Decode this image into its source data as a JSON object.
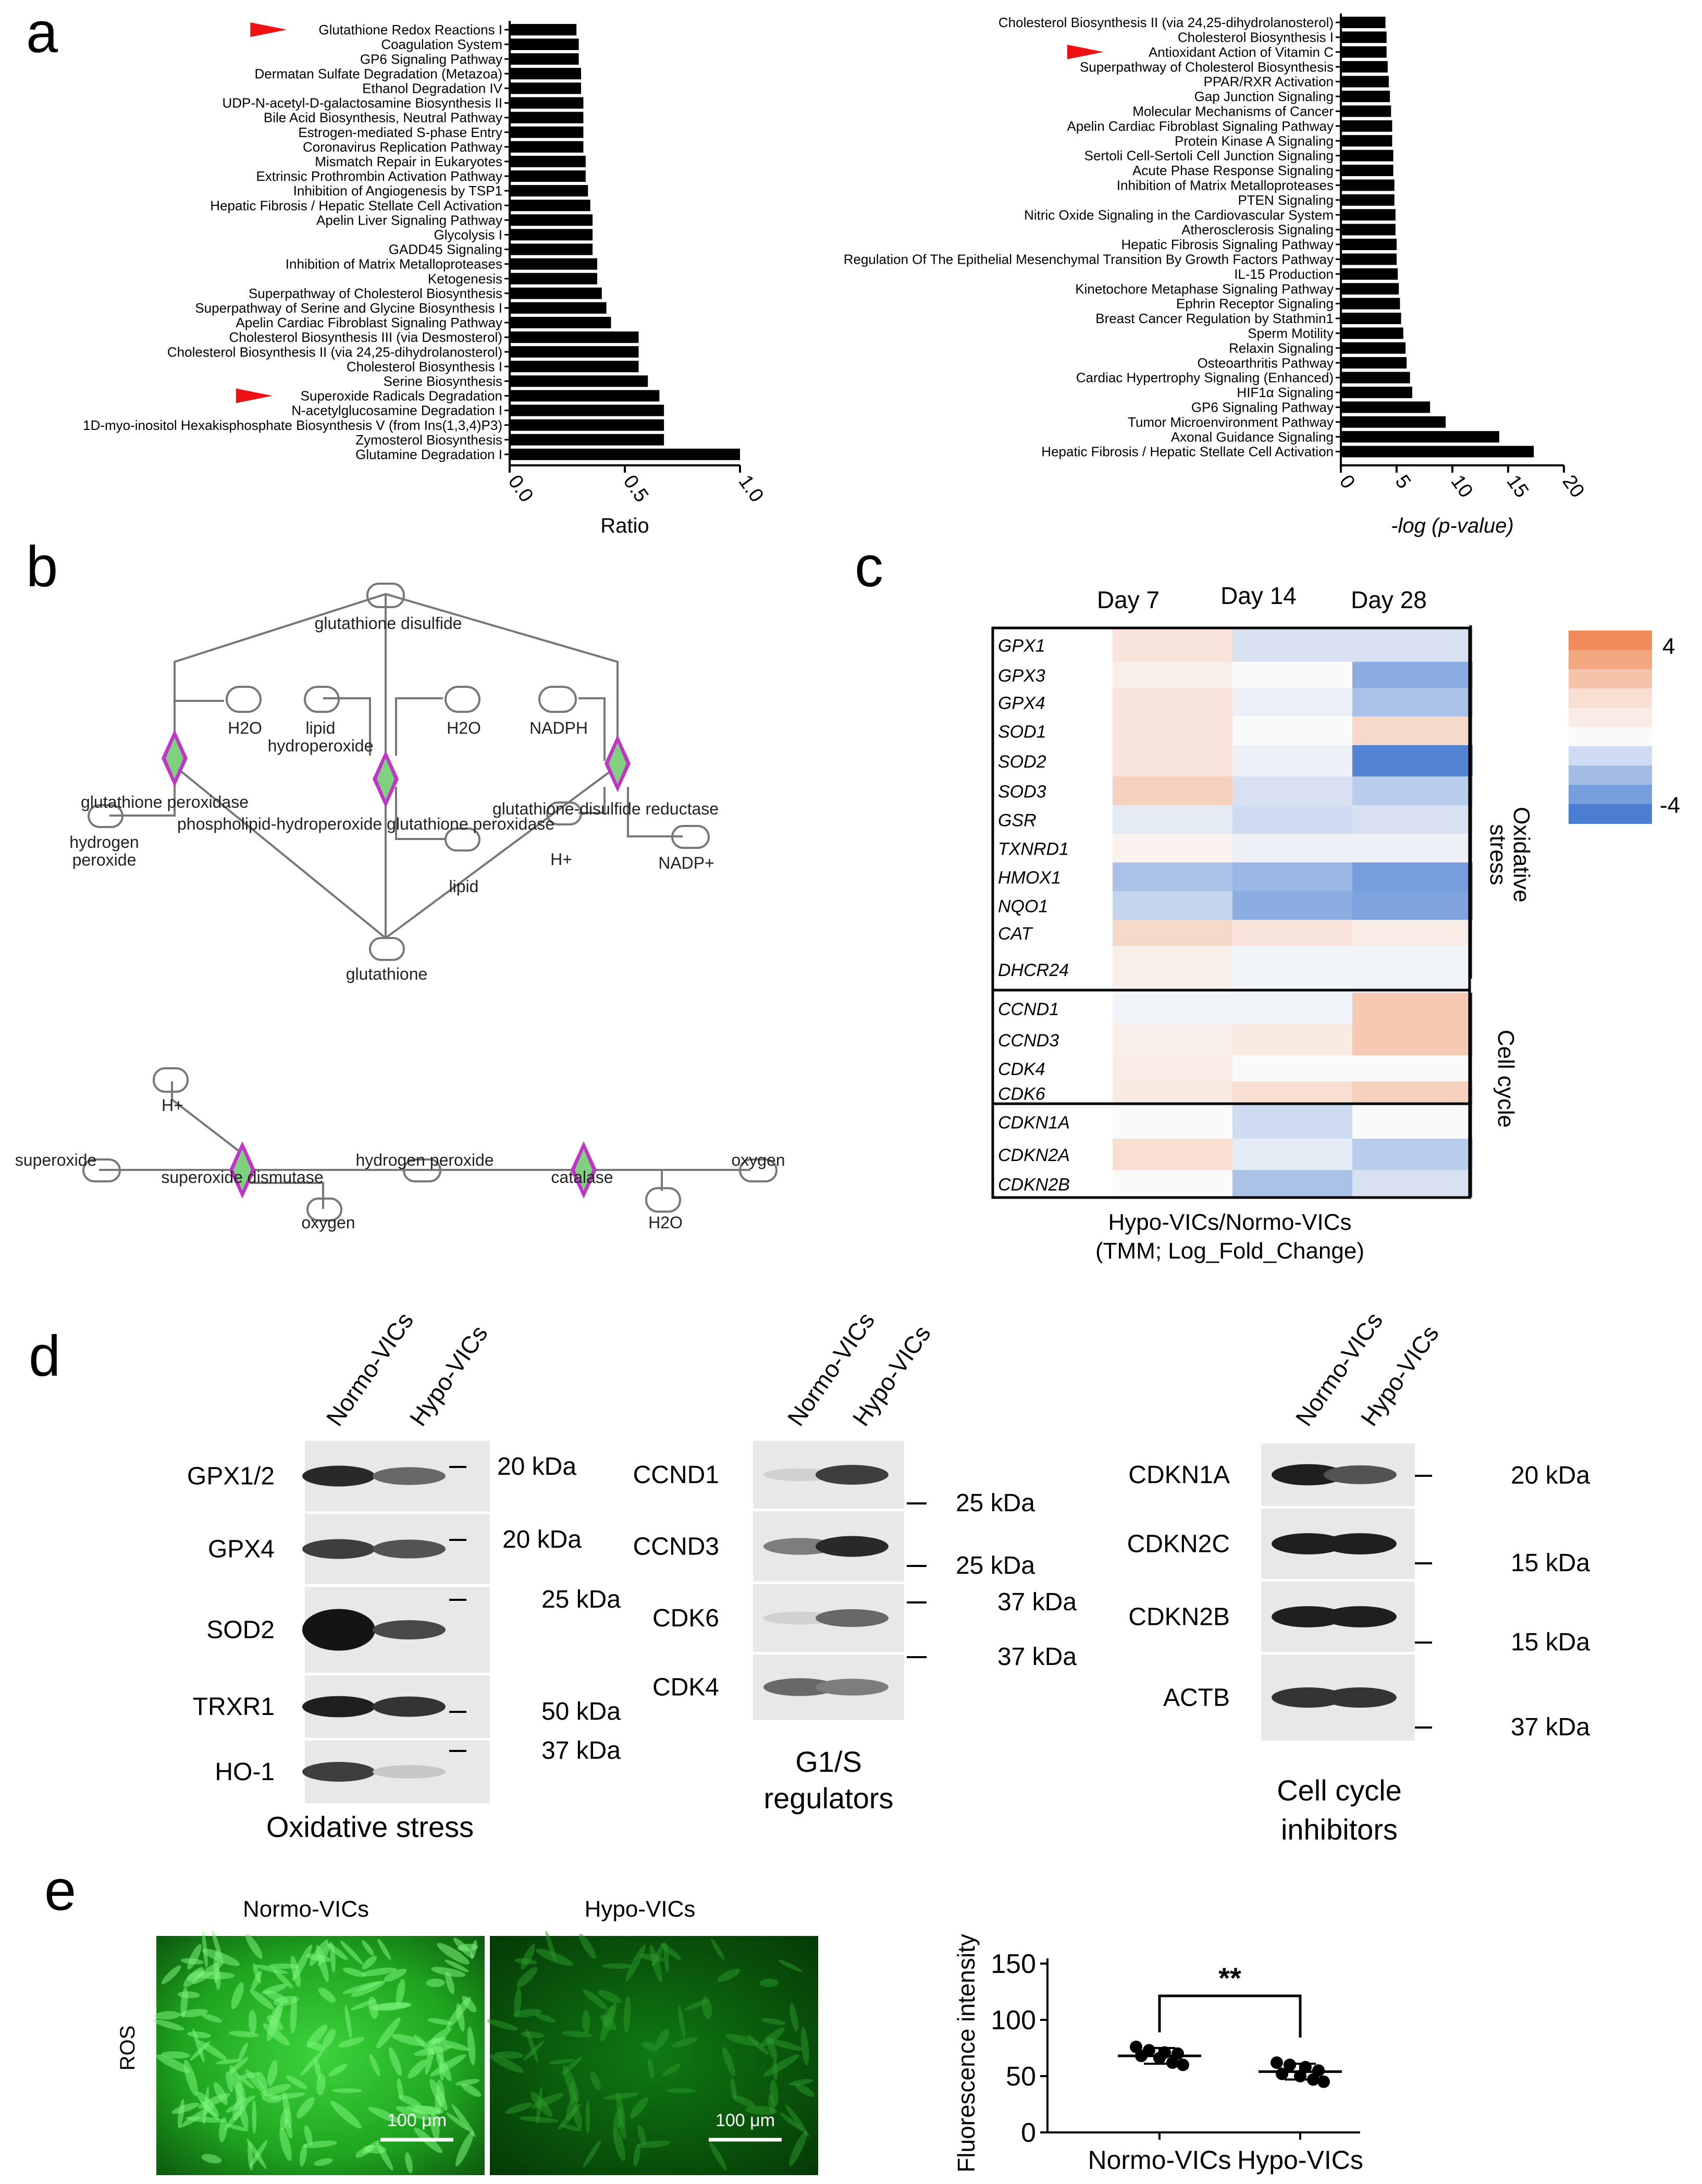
{
  "panels": {
    "a": "a",
    "b": "b",
    "c": "c",
    "d": "d",
    "e": "e"
  },
  "chart_data": [
    {
      "type": "bar",
      "orientation": "horizontal",
      "title": "",
      "xlabel": "Ratio",
      "ylabel": "",
      "xlim": [
        0,
        1.0
      ],
      "xticks": [
        "0.0",
        "0.5",
        "1.0"
      ],
      "highlighted": [
        "Glutathione Redox Reactions I",
        "Superoxide Radicals Degradation"
      ],
      "categories": [
        "Glutathione Redox Reactions I",
        "Coagulation System",
        "GP6 Signaling Pathway",
        "Dermatan Sulfate Degradation (Metazoa)",
        "Ethanol Degradation IV",
        "UDP-N-acetyl-D-galactosamine Biosynthesis II",
        "Bile Acid Biosynthesis, Neutral Pathway",
        "Estrogen-mediated S-phase Entry",
        "Coronavirus Replication Pathway",
        "Mismatch Repair in Eukaryotes",
        "Extrinsic Prothrombin Activation Pathway",
        "Inhibition of Angiogenesis by TSP1",
        "Hepatic Fibrosis / Hepatic Stellate Cell Activation",
        "Apelin Liver Signaling Pathway",
        "Glycolysis I",
        "GADD45 Signaling",
        "Inhibition of Matrix Metalloproteases",
        "Ketogenesis",
        "Superpathway of Cholesterol Biosynthesis",
        "Superpathway of Serine and Glycine Biosynthesis I",
        "Apelin Cardiac Fibroblast Signaling Pathway",
        "Cholesterol Biosynthesis III (via Desmosterol)",
        "Cholesterol Biosynthesis II (via 24,25-dihydrolanosterol)",
        "Cholesterol Biosynthesis I",
        "Serine Biosynthesis",
        "Superoxide Radicals Degradation",
        "N-acetylglucosamine Degradation I",
        "1D-myo-inositol Hexakisphosphate Biosynthesis V (from Ins(1,3,4)P3)",
        "Zymosterol Biosynthesis",
        "Glutamine Degradation I"
      ],
      "values": [
        0.29,
        0.3,
        0.3,
        0.31,
        0.31,
        0.32,
        0.32,
        0.32,
        0.32,
        0.33,
        0.33,
        0.34,
        0.35,
        0.36,
        0.36,
        0.36,
        0.38,
        0.38,
        0.4,
        0.42,
        0.44,
        0.56,
        0.56,
        0.56,
        0.6,
        0.65,
        0.67,
        0.67,
        0.67,
        1.0
      ]
    },
    {
      "type": "bar",
      "orientation": "horizontal",
      "title": "",
      "xlabel": "-log (p-value)",
      "ylabel": "",
      "xlim": [
        0,
        20
      ],
      "xticks": [
        "0",
        "5",
        "10",
        "15",
        "20"
      ],
      "highlighted": [
        "Antioxidant Action of Vitamin C"
      ],
      "categories": [
        "Cholesterol Biosynthesis II (via 24,25-dihydrolanosterol)",
        "Cholesterol Biosynthesis I",
        "Antioxidant Action of Vitamin C",
        "Superpathway of Cholesterol Biosynthesis",
        "PPAR/RXR Activation",
        "Gap Junction Signaling",
        "Molecular Mechanisms of Cancer",
        "Apelin Cardiac Fibroblast Signaling Pathway",
        "Protein Kinase A Signaling",
        "Sertoli Cell-Sertoli Cell Junction Signaling",
        "Acute Phase Response Signaling",
        "Inhibition of Matrix Metalloproteases",
        "PTEN Signaling",
        "Nitric Oxide Signaling in the Cardiovascular System",
        "Atherosclerosis Signaling",
        "Hepatic Fibrosis Signaling Pathway",
        "Regulation Of The Epithelial Mesenchymal Transition By Growth Factors Pathway",
        "IL-15 Production",
        "Kinetochore Metaphase Signaling Pathway",
        "Ephrin Receptor Signaling",
        "Breast Cancer Regulation by Stathmin1",
        "Sperm Motility",
        "Relaxin Signaling",
        "Osteoarthritis Pathway",
        "Cardiac Hypertrophy Signaling (Enhanced)",
        "HIF1α Signaling",
        "GP6 Signaling Pathway",
        "Tumor Microenvironment Pathway",
        "Axonal Guidance Signaling",
        "Hepatic Fibrosis / Hepatic Stellate Cell Activation"
      ],
      "values": [
        4.0,
        4.1,
        4.1,
        4.2,
        4.3,
        4.4,
        4.5,
        4.6,
        4.6,
        4.7,
        4.7,
        4.8,
        4.8,
        4.9,
        4.9,
        5.0,
        5.0,
        5.1,
        5.2,
        5.3,
        5.4,
        5.6,
        5.8,
        5.9,
        6.2,
        6.4,
        8.0,
        9.4,
        14.2,
        17.3
      ]
    },
    {
      "type": "heatmap",
      "title": "",
      "columns": [
        "Day 7",
        "Day 14",
        "Day 28"
      ],
      "rows": [
        "GPX1",
        "GPX3",
        "GPX4",
        "SOD1",
        "SOD2",
        "SOD3",
        "GSR",
        "TXNRD1",
        "HMOX1",
        "NQO1",
        "CAT",
        "DHCR24",
        "CCND1",
        "CCND3",
        "CDK4",
        "CDK6",
        "CDKN1A",
        "CDKN2A",
        "CDKN2B"
      ],
      "values": [
        [
          0.8,
          -0.8,
          -0.8
        ],
        [
          0.4,
          0.0,
          -2.5
        ],
        [
          0.8,
          -0.3,
          -1.8
        ],
        [
          0.8,
          0.0,
          1.2
        ],
        [
          0.8,
          -0.3,
          -3.8
        ],
        [
          1.5,
          -0.8,
          -1.5
        ],
        [
          -0.5,
          -1.0,
          -0.8
        ],
        [
          0.3,
          -0.3,
          -0.3
        ],
        [
          -1.8,
          -2.2,
          -3.0
        ],
        [
          -1.2,
          -2.5,
          -2.8
        ],
        [
          1.2,
          0.8,
          0.5
        ],
        [
          0.4,
          -0.2,
          -0.2
        ],
        [
          -0.2,
          -0.2,
          1.8
        ],
        [
          0.4,
          0.6,
          1.8
        ],
        [
          0.5,
          0.0,
          0.0
        ],
        [
          0.6,
          1.0,
          1.5
        ],
        [
          0.0,
          -1.0,
          0.0
        ],
        [
          1.0,
          -0.5,
          -1.5
        ],
        [
          0.0,
          -1.8,
          -0.8
        ]
      ],
      "groups": [
        {
          "name": "Oxidative stress",
          "rows": 12
        },
        {
          "name": "Cell cycle",
          "rows": 7
        }
      ],
      "colorbar": {
        "max_label": "4",
        "min_label": "-4",
        "range": [
          -4,
          4
        ]
      },
      "xlabel": "Hypo-VICs/Normo-VICs",
      "xlabel2": "(TMM; Log_Fold_Change)"
    },
    {
      "type": "scatter",
      "title": "",
      "xlabel": "",
      "ylabel": "Fluorescence intensity",
      "ylim": [
        0,
        150
      ],
      "yticks": [
        "0",
        "50",
        "100",
        "150"
      ],
      "categories": [
        "Normo-VICs",
        "Hypo-VICs"
      ],
      "series": [
        {
          "name": "Normo-VICs",
          "values": [
            76,
            73,
            71,
            70,
            68,
            66,
            62,
            60
          ],
          "mean": 68,
          "sd": 7
        },
        {
          "name": "Hypo-VICs",
          "values": [
            62,
            60,
            58,
            55,
            52,
            50,
            47,
            45
          ],
          "mean": 54,
          "sd": 7
        }
      ],
      "significance": "**"
    }
  ],
  "panel_b": {
    "top": {
      "glutathione_disulfide": "glutathione disulfide",
      "h2o_a": "H2O",
      "lipid_hydroperoxide_1": "lipid",
      "lipid_hydroperoxide_2": "hydroperoxide",
      "h2o_b": "H2O",
      "nadph": "NADPH",
      "glutathione_peroxidase": "glutathione peroxidase",
      "hydrogen_peroxide_1": "hydrogen",
      "hydrogen_peroxide_2": "peroxide",
      "phgpx": "phospholipid-hydroperoxide glutathione peroxidase",
      "gsr": "glutathione-disulfide reductase",
      "h_plus": "H+",
      "nadp_plus": "NADP+",
      "lipid": "lipid",
      "glutathione": "glutathione"
    },
    "bottom": {
      "h_plus": "H+",
      "superoxide": "superoxide",
      "superoxide_dismutase": "superoxide dismutase",
      "hydrogen_peroxide": "hydrogen peroxide",
      "catalase": "catalase",
      "oxygen_right": "oxygen",
      "oxygen_bottom": "oxygen",
      "h2o": "H2O"
    }
  },
  "panel_c": {
    "side_label_1a": "Oxidative",
    "side_label_1b": "stress",
    "side_label_2": "Cell cycle"
  },
  "panel_d": {
    "lanes": [
      "Normo-VICs",
      "Hypo-VICs"
    ],
    "blot_groups": [
      {
        "caption": "Oxidative stress",
        "rows": [
          {
            "protein": "GPX1/2",
            "marker": "20 kDa"
          },
          {
            "protein": "GPX4",
            "marker": "20 kDa"
          },
          {
            "protein": "SOD2",
            "marker": "25 kDa"
          },
          {
            "protein": "TRXR1",
            "marker": "50 kDa"
          },
          {
            "protein": "HO-1",
            "marker": "37 kDa"
          }
        ]
      },
      {
        "caption_1": "G1/S",
        "caption_2": "regulators",
        "rows": [
          {
            "protein": "CCND1",
            "marker": "25 kDa"
          },
          {
            "protein": "CCND3",
            "marker": "25 kDa"
          },
          {
            "protein": "CDK6",
            "marker": "37 kDa"
          },
          {
            "protein": "CDK4",
            "marker": "37 kDa"
          }
        ]
      },
      {
        "caption_1": "Cell cycle",
        "caption_2": "inhibitors",
        "rows": [
          {
            "protein": "CDKN1A",
            "marker": "20 kDa"
          },
          {
            "protein": "CDKN2C",
            "marker": "15 kDa"
          },
          {
            "protein": "CDKN2B",
            "marker": "15 kDa"
          },
          {
            "protein": "ACTB",
            "marker": "37 kDa"
          }
        ]
      }
    ]
  },
  "panel_e": {
    "titles": [
      "Normo-VICs",
      "Hypo-VICs"
    ],
    "row_label": "ROS",
    "scalebar": "100 μm"
  }
}
